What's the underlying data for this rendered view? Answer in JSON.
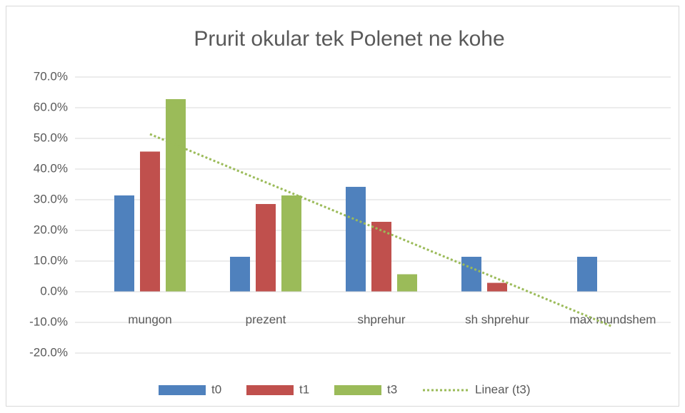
{
  "chart_data": {
    "type": "bar",
    "title": "Prurit okular tek Polenet ne kohe",
    "categories": [
      "mungon",
      "prezent",
      "shprehur",
      "sh shprehur",
      "max mundshem"
    ],
    "series": [
      {
        "name": "t0",
        "color": "#4f81bd",
        "values": [
          31.4,
          11.4,
          34.2,
          11.4,
          11.4
        ]
      },
      {
        "name": "t1",
        "color": "#c0504d",
        "values": [
          45.7,
          28.6,
          22.8,
          2.9,
          0
        ]
      },
      {
        "name": "t3",
        "color": "#9bbb59",
        "values": [
          62.8,
          31.4,
          5.7,
          0,
          0
        ]
      }
    ],
    "trendlines": [
      {
        "name": "Linear (t3)",
        "series": 2,
        "color": "#9bbb59"
      }
    ],
    "ylim": [
      -20,
      70
    ],
    "yticks": [
      {
        "value": -20,
        "label": "-20.0%"
      },
      {
        "value": -10,
        "label": "-10.0%"
      },
      {
        "value": 0,
        "label": "0.0%"
      },
      {
        "value": 10,
        "label": "10.0%"
      },
      {
        "value": 20,
        "label": "20.0%"
      },
      {
        "value": 30,
        "label": "30.0%"
      },
      {
        "value": 40,
        "label": "40.0%"
      },
      {
        "value": 50,
        "label": "50.0%"
      },
      {
        "value": 60,
        "label": "60.0%"
      },
      {
        "value": 70,
        "label": "70.0%"
      }
    ],
    "grid": true,
    "legend": "bottom"
  }
}
